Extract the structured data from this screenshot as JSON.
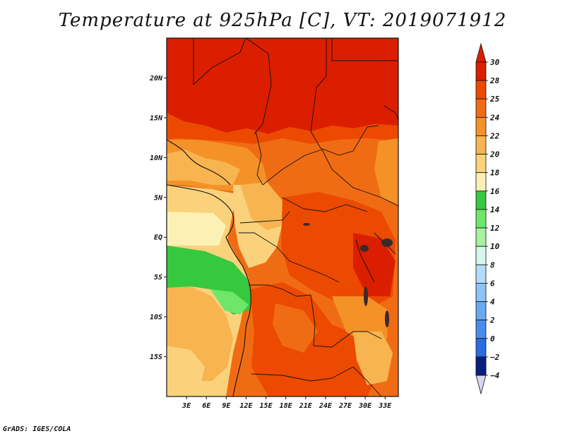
{
  "title": "Temperature at 925hPa [C], VT: 2019071912",
  "credit": "GrADS: IGES/COLA",
  "map": {
    "region": "Central Africa",
    "lon_range": [
      0,
      35
    ],
    "lat_range": [
      -20,
      25
    ],
    "lat_ticks": [
      {
        "value": 20,
        "label": "20N"
      },
      {
        "value": 15,
        "label": "15N"
      },
      {
        "value": 10,
        "label": "10N"
      },
      {
        "value": 5,
        "label": "5N"
      },
      {
        "value": 0,
        "label": "EQ"
      },
      {
        "value": -5,
        "label": "5S"
      },
      {
        "value": -10,
        "label": "10S"
      },
      {
        "value": -15,
        "label": "15S"
      }
    ],
    "lon_ticks": [
      {
        "value": 3,
        "label": "3E"
      },
      {
        "value": 6,
        "label": "6E"
      },
      {
        "value": 9,
        "label": "9E"
      },
      {
        "value": 12,
        "label": "12E"
      },
      {
        "value": 15,
        "label": "15E"
      },
      {
        "value": 18,
        "label": "18E"
      },
      {
        "value": 21,
        "label": "21E"
      },
      {
        "value": 24,
        "label": "24E"
      },
      {
        "value": 27,
        "label": "27E"
      },
      {
        "value": 30,
        "label": "30E"
      },
      {
        "value": 33,
        "label": "33E"
      }
    ]
  },
  "colorbar": {
    "levels": [
      {
        "label": "30",
        "color": "#dc1e00"
      },
      {
        "label": "28",
        "color": "#ec4a00"
      },
      {
        "label": "25",
        "color": "#f06c14"
      },
      {
        "label": "24",
        "color": "#f49228"
      },
      {
        "label": "22",
        "color": "#f8b450"
      },
      {
        "label": "20",
        "color": "#fad27c"
      },
      {
        "label": "18",
        "color": "#fdf0b4"
      },
      {
        "label": "16",
        "color": "#36c83e"
      },
      {
        "label": "14",
        "color": "#6ee66a"
      },
      {
        "label": "12",
        "color": "#a6f2a0"
      },
      {
        "label": "10",
        "color": "#d4f6ec"
      },
      {
        "label": "8",
        "color": "#b4dcfa"
      },
      {
        "label": "6",
        "color": "#8cc4f6"
      },
      {
        "label": "4",
        "color": "#6aa8f0"
      },
      {
        "label": "2",
        "color": "#4a8cec"
      },
      {
        "label": "0",
        "color": "#2c6ce0"
      },
      {
        "label": "−2",
        "color": "#1448c0"
      },
      {
        "label": "−4",
        "color": "#0a1e80"
      }
    ],
    "top_cap_color": "#dc1e00",
    "bottom_cap_color": "#d6d6f0",
    "fill_order_high_to_low": true
  }
}
